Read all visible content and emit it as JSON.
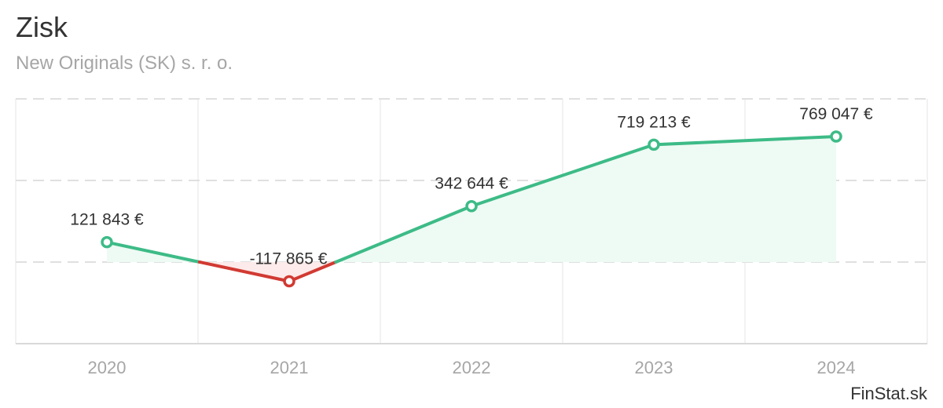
{
  "title": "Zisk",
  "subtitle": "New Originals (SK) s. r. o.",
  "credit": "FinStat.sk",
  "chart_data": {
    "type": "line",
    "categories": [
      "2020",
      "2021",
      "2022",
      "2023",
      "2024"
    ],
    "values": [
      121843,
      -117865,
      342644,
      719213,
      769047
    ],
    "labels": [
      "121 843 €",
      "-117 865 €",
      "342 644 €",
      "719 213 €",
      "769 047 €"
    ],
    "ylim": [
      -500000,
      1000000
    ],
    "grid": true,
    "positive_color": "#3dbb87",
    "negative_color": "#d13a32",
    "positive_fill": "#eefaf4",
    "negative_fill": "#fcebea"
  }
}
